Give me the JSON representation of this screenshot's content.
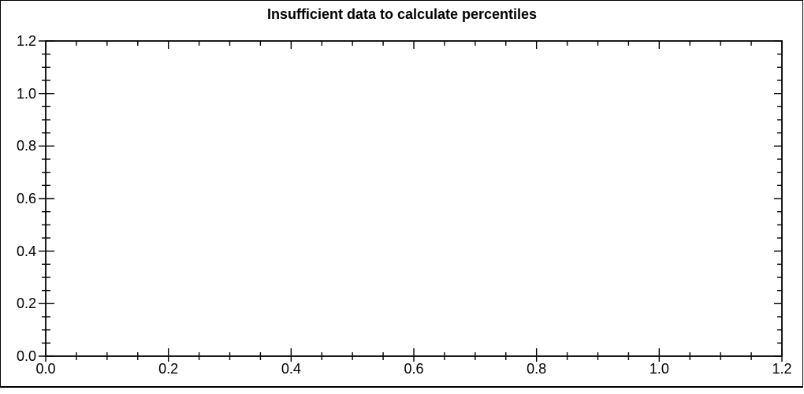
{
  "window": {
    "background": "#ffffff",
    "border_color": "#000000"
  },
  "chart_data": {
    "type": "scatter",
    "title": "Insufficient data to calculate percentiles",
    "title_style": "bold",
    "series": [],
    "points": [],
    "xlabel": "",
    "ylabel": "",
    "xlim": [
      0.0,
      1.2
    ],
    "ylim": [
      0.0,
      1.2
    ],
    "x_major_tick_labels": [
      "0.0",
      "0.2",
      "0.4",
      "0.6",
      "0.8",
      "1.0",
      "1.2"
    ],
    "y_major_tick_labels": [
      "0.0",
      "0.2",
      "0.4",
      "0.6",
      "0.8",
      "1.0",
      "1.2"
    ],
    "major_tick_step": 0.2,
    "minor_tick_step": 0.05,
    "grid": false,
    "legend_position": "none",
    "frame": "box",
    "axis_color": "#000000",
    "text_color": "#000000"
  }
}
